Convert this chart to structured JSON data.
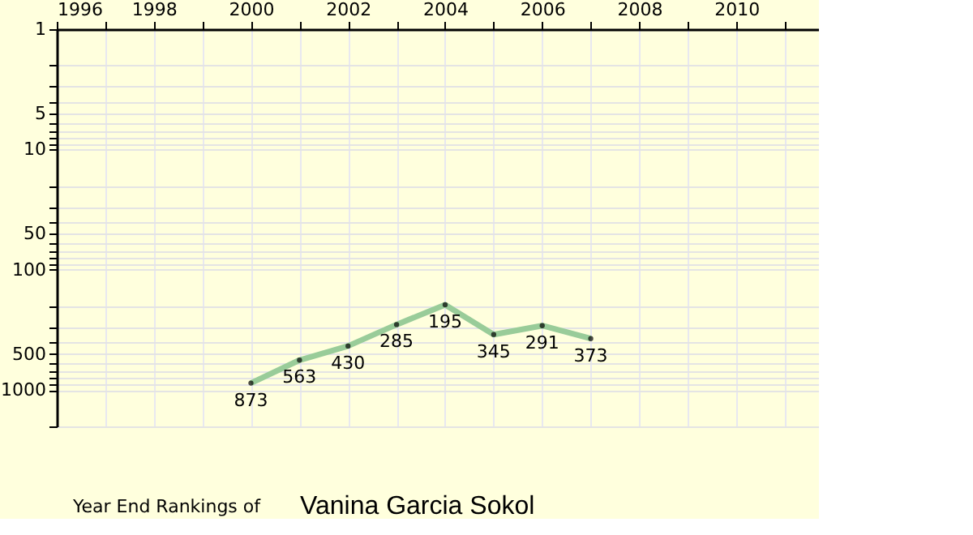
{
  "chart_data": {
    "type": "line",
    "title": "Year End Rankings of",
    "subtitle": "Vanina Garcia Sokol",
    "x": [
      2000,
      2001,
      2002,
      2003,
      2004,
      2005,
      2006,
      2007
    ],
    "series": [
      {
        "color": "#99cc99",
        "values": [
          873,
          563,
          430,
          285,
          195,
          345,
          291,
          373
        ]
      }
    ],
    "data_labels": true,
    "marker": "circle",
    "line_style": "solid",
    "log": "y",
    "grid": true,
    "xlim": [
      1996,
      2011.7
    ],
    "xticks": [
      1996,
      {
        "value": 1997,
        "label": null
      },
      1998,
      {
        "value": 1999,
        "label": null
      },
      2000,
      {
        "value": 2001,
        "label": null
      },
      2002,
      {
        "value": 2003,
        "label": null
      },
      2004,
      {
        "value": 2005,
        "label": null
      },
      2006,
      {
        "value": 2007,
        "label": null
      },
      2008,
      {
        "value": 2009,
        "label": null
      },
      2010,
      {
        "value": 2011,
        "label": null
      }
    ],
    "ylim": [
      2000,
      1
    ],
    "yticks": [
      1,
      {
        "value": 2,
        "label": null
      },
      {
        "value": 3,
        "label": null
      },
      {
        "value": 4,
        "label": null
      },
      5,
      {
        "value": 6,
        "label": null
      },
      {
        "value": 7,
        "label": null
      },
      {
        "value": 8,
        "label": null
      },
      {
        "value": 9,
        "label": null
      },
      10,
      {
        "value": 20,
        "label": null
      },
      {
        "value": 30,
        "label": null
      },
      {
        "value": 40,
        "label": null
      },
      50,
      {
        "value": 60,
        "label": null
      },
      {
        "value": 70,
        "label": null
      },
      {
        "value": 80,
        "label": null
      },
      {
        "value": 90,
        "label": null
      },
      100,
      {
        "value": 200,
        "label": null
      },
      {
        "value": 300,
        "label": null
      },
      {
        "value": 400,
        "label": null
      },
      500,
      {
        "value": 600,
        "label": null
      },
      {
        "value": 700,
        "label": null
      },
      {
        "value": 800,
        "label": null
      },
      {
        "value": 900,
        "label": null
      },
      1000,
      {
        "value": 2000,
        "label": null
      }
    ]
  }
}
